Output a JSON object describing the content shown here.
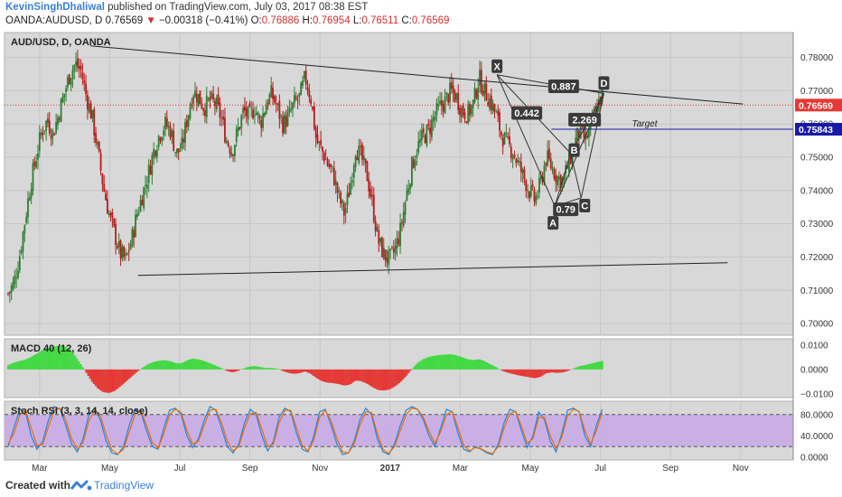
{
  "header": {
    "author": "KevinSinghDhaliwal",
    "published_text": "published on TradingView.com, July 03, 2017 08:38 EST",
    "symbol": "OANDA:AUDUSD, D",
    "last": "0.76569",
    "change_arrow": "▼",
    "change": "−0.00318 (−0.41%)",
    "ohlc": {
      "o_label": "O:",
      "o": "0.76886",
      "h_label": "H:",
      "h": "0.76954",
      "l_label": "L:",
      "l": "0.76511",
      "c_label": "C:",
      "c": "0.76569"
    }
  },
  "panes": {
    "main_label": "AUD/USD, D, OANDA",
    "macd_label": "MACD 40 (12, 26)",
    "stoch_label": "Stoch RSI (3, 3, 14, 14, close)"
  },
  "colors": {
    "pane_bg": "#d8d8d8",
    "up_candle": "#2e7d32",
    "down_candle": "#b71c1c",
    "macd_up": "#43d943",
    "macd_down": "#e53935",
    "stoch_band": "#c8a8e8",
    "stoch_k": "#1e88e5",
    "stoch_d": "#ef6c00",
    "price_badge": "#e53935",
    "target_line": "#1a1aa8",
    "last_price_line": "#e53935"
  },
  "chart_data": [
    {
      "type": "candlestick",
      "xaxis_ticks": [
        "Mar",
        "May",
        "Jul",
        "Sep",
        "Nov",
        "2017",
        "Mar",
        "May",
        "Jul",
        "Sep",
        "Nov"
      ],
      "yaxis_ticks": [
        "0.78000",
        "0.77000",
        "0.76000",
        "0.75000",
        "0.74000",
        "0.73000",
        "0.72000",
        "0.71000",
        "0.70000"
      ],
      "ylim": [
        0.6965,
        0.7875
      ],
      "last_price": "0.76569",
      "target_price": "0.75843",
      "target_label": "Target",
      "pattern_points": [
        "X",
        "A",
        "B",
        "C",
        "D"
      ],
      "pattern_ratios": [
        "0.442",
        "0.79",
        "2.269",
        "0.887"
      ],
      "close_trace": [
        0.709,
        0.712,
        0.72,
        0.731,
        0.742,
        0.75,
        0.758,
        0.761,
        0.757,
        0.763,
        0.769,
        0.775,
        0.778,
        0.776,
        0.768,
        0.762,
        0.752,
        0.741,
        0.733,
        0.727,
        0.721,
        0.719,
        0.725,
        0.733,
        0.739,
        0.745,
        0.752,
        0.757,
        0.76,
        0.758,
        0.751,
        0.753,
        0.762,
        0.77,
        0.768,
        0.765,
        0.767,
        0.766,
        0.762,
        0.755,
        0.752,
        0.758,
        0.764,
        0.762,
        0.765,
        0.76,
        0.766,
        0.769,
        0.765,
        0.76,
        0.762,
        0.766,
        0.768,
        0.774,
        0.768,
        0.755,
        0.752,
        0.748,
        0.745,
        0.738,
        0.733,
        0.741,
        0.753,
        0.75,
        0.745,
        0.736,
        0.725,
        0.721,
        0.719,
        0.722,
        0.728,
        0.738,
        0.747,
        0.753,
        0.756,
        0.758,
        0.762,
        0.765,
        0.767,
        0.77,
        0.768,
        0.764,
        0.763,
        0.766,
        0.774,
        0.77,
        0.767,
        0.763,
        0.757,
        0.754,
        0.752,
        0.748,
        0.744,
        0.74,
        0.737,
        0.742,
        0.75,
        0.747,
        0.744,
        0.743,
        0.748,
        0.754,
        0.758,
        0.755,
        0.759,
        0.765,
        0.769
      ],
      "resistance_line": {
        "from": [
          "Apr 2016",
          0.7835
        ],
        "to": [
          "Oct 2017",
          0.766
        ]
      },
      "support_line": {
        "from": [
          "May 2016",
          0.7145
        ],
        "to": [
          "Oct 2017",
          0.7183
        ]
      }
    },
    {
      "type": "histogram",
      "name": "MACD 40 (12, 26)",
      "yaxis_ticks": [
        "0.0100",
        "0.0000",
        "−0.0100"
      ],
      "ylim": [
        -0.0115,
        0.0125
      ],
      "values": [
        0.0018,
        0.0028,
        0.0034,
        0.004,
        0.005,
        0.0063,
        0.0078,
        0.0088,
        0.0094,
        0.0096,
        0.0095,
        0.0082,
        0.0055,
        0.002,
        -0.0016,
        -0.0052,
        -0.0078,
        -0.0093,
        -0.0096,
        -0.0088,
        -0.007,
        -0.005,
        -0.003,
        -0.001,
        0.0008,
        0.0022,
        0.0031,
        0.0036,
        0.0038,
        0.0033,
        0.0025,
        0.0026,
        0.0038,
        0.0045,
        0.0041,
        0.0034,
        0.0026,
        0.0016,
        0.0006,
        -0.0006,
        -0.0012,
        -0.0006,
        0.0004,
        0.0012,
        0.0014,
        0.001,
        0.0006,
        0.0006,
        0.0004,
        -0.0006,
        -0.0014,
        -0.0018,
        -0.0015,
        -0.0008,
        -0.0018,
        -0.0035,
        -0.0048,
        -0.0054,
        -0.0056,
        -0.006,
        -0.0066,
        -0.0062,
        -0.0045,
        -0.0048,
        -0.0058,
        -0.0072,
        -0.0084,
        -0.0086,
        -0.0082,
        -0.007,
        -0.0052,
        -0.0028,
        0.0001,
        0.0026,
        0.0042,
        0.0051,
        0.0056,
        0.0059,
        0.0061,
        0.0062,
        0.0058,
        0.005,
        0.0042,
        0.0038,
        0.0042,
        0.0034,
        0.0022,
        0.001,
        -0.0004,
        -0.0012,
        -0.0018,
        -0.0024,
        -0.0028,
        -0.0032,
        -0.0036,
        -0.003,
        -0.0016,
        -0.0012,
        -0.0014,
        -0.0012,
        -0.0005,
        0.0005,
        0.0014,
        0.0018,
        0.0024,
        0.003,
        0.0035
      ]
    },
    {
      "type": "line",
      "name": "Stoch RSI (3, 3, 14, 14, close)",
      "yaxis_ticks": [
        "80.0000",
        "40.0000",
        "0.0000"
      ],
      "ylim": [
        -5,
        105
      ],
      "bands": [
        20,
        80
      ],
      "series": [
        {
          "values": [
            20,
            55,
            90,
            85,
            40,
            15,
            30,
            70,
            95,
            90,
            60,
            25,
            10,
            35,
            80,
            92,
            70,
            30,
            8,
            5,
            20,
            60,
            90,
            85,
            50,
            20,
            15,
            55,
            88,
            92,
            80,
            40,
            18,
            35,
            70,
            95,
            88,
            55,
            20,
            8,
            25,
            65,
            90,
            80,
            40,
            12,
            30,
            75,
            92,
            85,
            45,
            15,
            10,
            40,
            85,
            90,
            60,
            25,
            5,
            8,
            30,
            70,
            92,
            80,
            35,
            10,
            5,
            25,
            60,
            88,
            95,
            90,
            70,
            40,
            20,
            55,
            90,
            85,
            45,
            15,
            10,
            20,
            15,
            8,
            5,
            25,
            65,
            90,
            85,
            50,
            18,
            40,
            85,
            70,
            30,
            10,
            45,
            88,
            92,
            85,
            40,
            20,
            60,
            90
          ]
        },
        {
          "values": [
            25,
            45,
            78,
            88,
            55,
            22,
            24,
            58,
            88,
            92,
            70,
            35,
            15,
            28,
            68,
            88,
            78,
            42,
            14,
            6,
            15,
            48,
            80,
            88,
            60,
            28,
            17,
            45,
            80,
            90,
            84,
            50,
            25,
            30,
            60,
            88,
            90,
            65,
            30,
            12,
            20,
            55,
            82,
            84,
            52,
            20,
            25,
            65,
            88,
            88,
            55,
            22,
            12,
            32,
            75,
            88,
            68,
            35,
            10,
            8,
            25,
            60,
            85,
            84,
            45,
            15,
            7,
            20,
            50,
            80,
            92,
            90,
            75,
            48,
            26,
            48,
            80,
            86,
            55,
            22,
            12,
            18,
            16,
            10,
            7,
            20,
            55,
            82,
            86,
            58,
            26,
            35,
            75,
            75,
            40,
            16,
            38,
            78,
            90,
            86,
            50,
            25,
            50,
            84
          ]
        }
      ]
    }
  ]
}
